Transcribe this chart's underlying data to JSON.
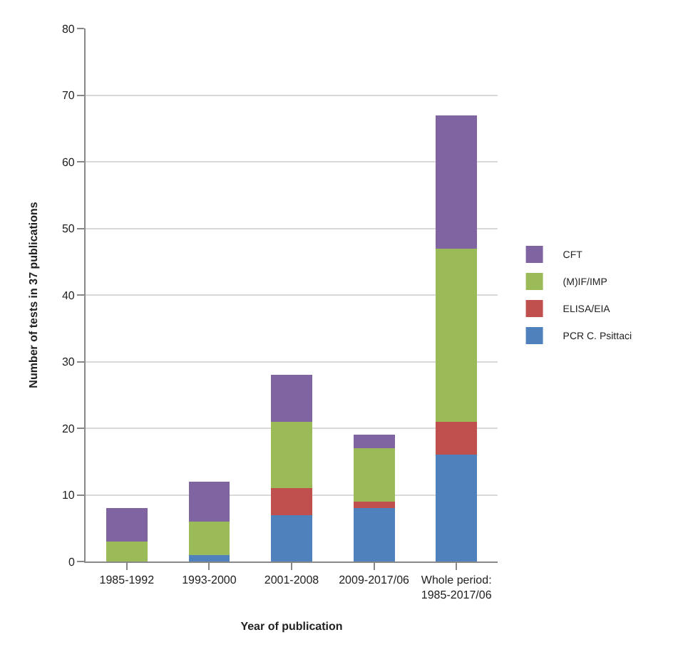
{
  "chart_data": {
    "type": "bar",
    "stacked": true,
    "xlabel": "Year of publication",
    "ylabel": "Number of tests in 37 publications",
    "categories": [
      "1985-1992",
      "1993-2000",
      "2001-2008",
      "2009-2017/06",
      "Whole period: 1985-2017/06"
    ],
    "series": [
      {
        "name": "PCR C. Psittaci",
        "color": "#4f81bd",
        "values": [
          0,
          1,
          7,
          8,
          16
        ]
      },
      {
        "name": "ELISA/EIA",
        "color": "#c0504d",
        "values": [
          0,
          0,
          4,
          1,
          5
        ]
      },
      {
        "name": "(M)IF/IMP",
        "color": "#9bbb59",
        "values": [
          3,
          5,
          10,
          8,
          26
        ]
      },
      {
        "name": "CFT",
        "color": "#8064a2",
        "values": [
          5,
          6,
          7,
          2,
          20
        ]
      }
    ],
    "ylim": [
      0,
      80
    ],
    "yticks": [
      0,
      10,
      20,
      30,
      40,
      50,
      60,
      70,
      80
    ],
    "grid": "y",
    "legend": "right"
  }
}
